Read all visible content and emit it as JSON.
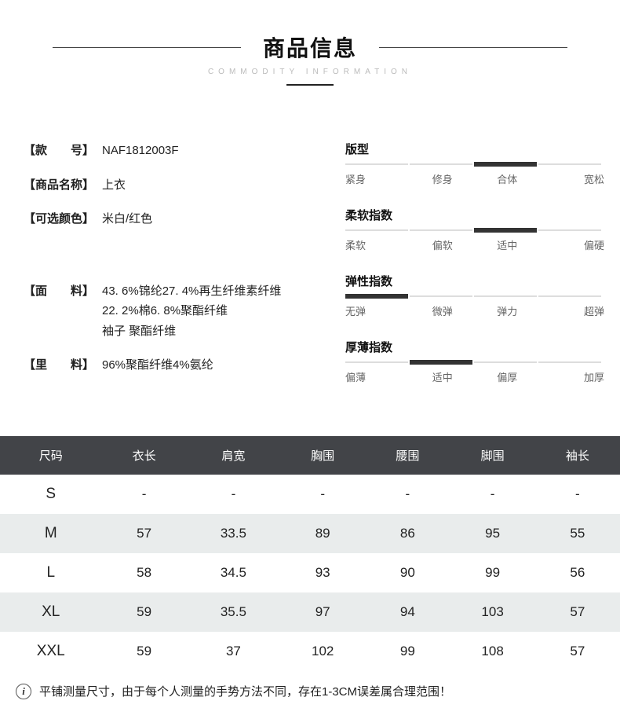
{
  "header": {
    "title": "商品信息",
    "subtitle": "COMMODITY INFORMATION"
  },
  "infoLeft": {
    "rows1": [
      {
        "label": "【款　　号】",
        "value": "NAF1812003F"
      },
      {
        "label": "【商品名称】",
        "value": "上衣"
      },
      {
        "label": "【可选颜色】",
        "value": "米白/红色"
      }
    ],
    "rows2": [
      {
        "label": "【面　　料】",
        "value": "43. 6%锦纶27. 4%再生纤维素纤维\n22. 2%棉6. 8%聚酯纤维\n袖子 聚酯纤维"
      },
      {
        "label": "【里　　料】",
        "value": "96%聚酯纤维4%氨纶"
      }
    ]
  },
  "scales": [
    {
      "title": "版型",
      "labels": [
        "紧身",
        "修身",
        "合体",
        "宽松"
      ],
      "filled": 2
    },
    {
      "title": "柔软指数",
      "labels": [
        "柔软",
        "偏软",
        "适中",
        "偏硬"
      ],
      "filled": 2
    },
    {
      "title": "弹性指数",
      "labels": [
        "无弹",
        "微弹",
        "弹力",
        "超弹"
      ],
      "filled": 0
    },
    {
      "title": "厚薄指数",
      "labels": [
        "偏薄",
        "适中",
        "偏厚",
        "加厚"
      ],
      "filled": 1
    }
  ],
  "sizeTable": {
    "columns": [
      "尺码",
      "衣长",
      "肩宽",
      "胸围",
      "腰围",
      "脚围",
      "袖长"
    ],
    "rows": [
      [
        "S",
        "-",
        "-",
        "-",
        "-",
        "-",
        "-"
      ],
      [
        "M",
        "57",
        "33.5",
        "89",
        "86",
        "95",
        "55"
      ],
      [
        "L",
        "58",
        "34.5",
        "93",
        "90",
        "99",
        "56"
      ],
      [
        "XL",
        "59",
        "35.5",
        "97",
        "94",
        "103",
        "57"
      ],
      [
        "XXL",
        "59",
        "37",
        "102",
        "99",
        "108",
        "57"
      ]
    ]
  },
  "footnote": "平铺测量尺寸，由于每个人测量的手势方法不同，存在1-3CM误差属合理范围！",
  "colors": {
    "tableHeaderBg": "#424448",
    "stripeBg": "#e9ecec",
    "barFilled": "#333333",
    "barEmpty": "#dddddd"
  },
  "layout": {
    "segWidth": 82,
    "segGap": 0
  }
}
